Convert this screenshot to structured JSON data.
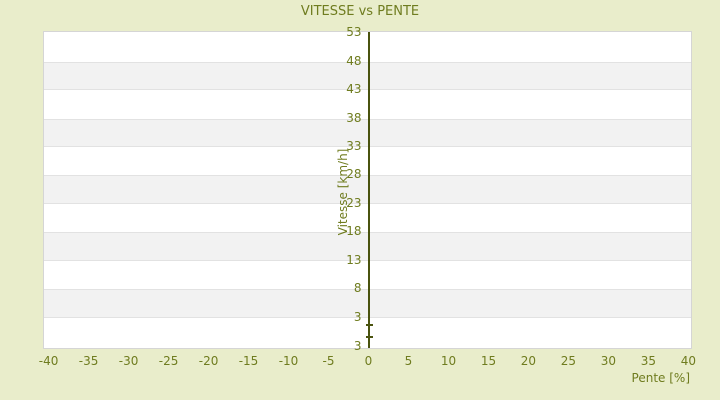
{
  "chart_data": {
    "type": "scatter",
    "title": "VITESSE vs PENTE",
    "xlabel": "Pente [%]",
    "ylabel": "Vitesse [km/h]",
    "x_ticks": [
      -40,
      -35,
      -30,
      -25,
      -20,
      -15,
      -10,
      -5,
      0,
      5,
      10,
      15,
      20,
      25,
      30,
      35,
      40
    ],
    "y_ticks": [
      53,
      48,
      43,
      38,
      33,
      28,
      23,
      18,
      13,
      8,
      3
    ],
    "y_axis_bottom_label": "3",
    "xlim": [
      -40.7,
      40.2
    ],
    "ylim": [
      -2.3,
      53.2
    ],
    "grid": "alternating-horizontal-bands",
    "legend": "none",
    "y_axis_line_x": 0,
    "series": [
      {
        "name": "vitesse",
        "marker": "horizontal-tick",
        "points": [
          {
            "x": 0,
            "y": 1.7
          },
          {
            "x": 0,
            "y": -0.4
          }
        ]
      }
    ],
    "colors": {
      "background": "#e9edcb",
      "text": "#6f7c1f",
      "axis_line": "#4a530f",
      "band_light": "#ffffff",
      "band_dark": "#f2f2f2",
      "band_border": "#e2e2e2",
      "plot_border": "#d5d5d5"
    }
  }
}
